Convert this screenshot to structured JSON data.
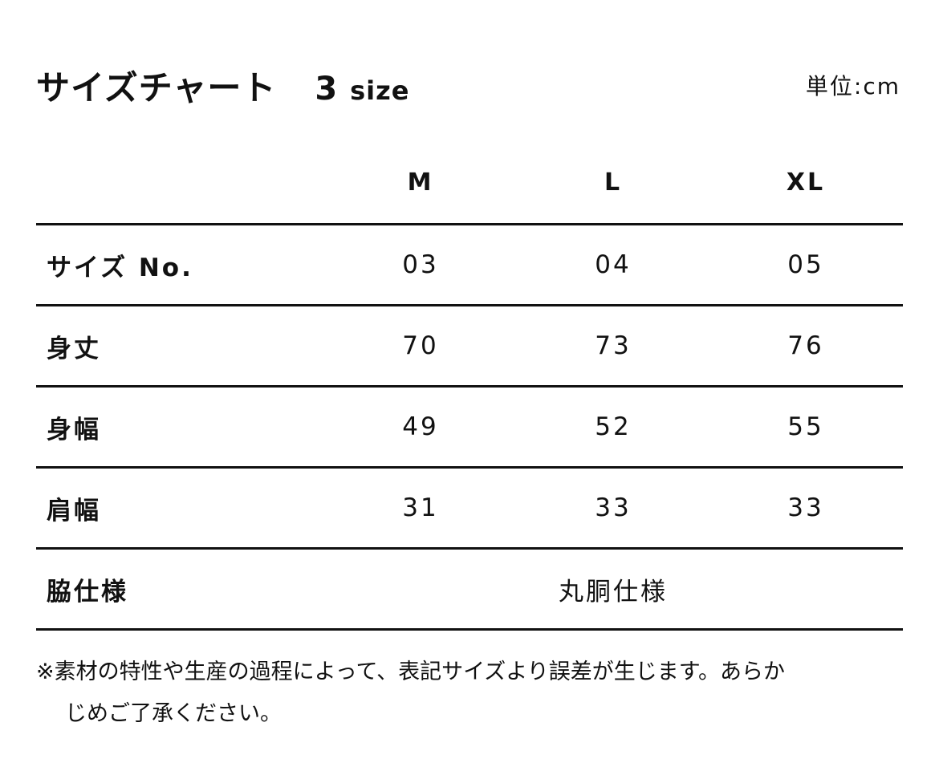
{
  "title": "サイズチャート",
  "size_count": "3",
  "size_count_suffix": "size",
  "unit": "単位:cm",
  "columns": [
    "M",
    "L",
    "XL"
  ],
  "rows": [
    {
      "label": "サイズ No.",
      "values": [
        "03",
        "04",
        "05"
      ]
    },
    {
      "label": "身丈",
      "values": [
        "70",
        "73",
        "76"
      ]
    },
    {
      "label": "身幅",
      "values": [
        "49",
        "52",
        "55"
      ]
    },
    {
      "label": "肩幅",
      "values": [
        "31",
        "33",
        "33"
      ]
    }
  ],
  "side_row": {
    "label": "脇仕様",
    "value": "丸胴仕様"
  },
  "note": {
    "line1": "※素材の特性や生産の過程によって、表記サイズより誤差が生じます。あらか",
    "line2": "じめご了承ください。"
  }
}
